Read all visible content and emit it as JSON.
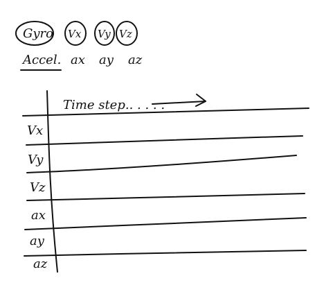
{
  "gyro": {
    "label": "Gyro",
    "components": [
      "Vx",
      "Vy",
      "Vz"
    ]
  },
  "accel": {
    "label": "Accel.",
    "components": [
      "ax",
      "ay",
      "az"
    ]
  },
  "table": {
    "header": "Time step.. . . . .",
    "rows": [
      "Vx",
      "Vy",
      "Vz",
      "ax",
      "ay",
      "az"
    ]
  }
}
